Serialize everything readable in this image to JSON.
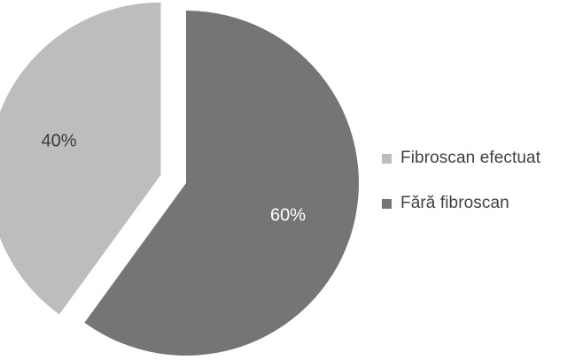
{
  "chart_data": {
    "type": "pie",
    "title": "",
    "slices": [
      {
        "label": "Fibroscan efectuat",
        "value": 40,
        "display": "40%",
        "color": "#bdbdbd",
        "exploded": true,
        "label_color": "#3a3a3a"
      },
      {
        "label": "Fără fibroscan",
        "value": 60,
        "display": "60%",
        "color": "#757575",
        "exploded": false,
        "label_color": "#ffffff"
      }
    ],
    "legend_placement": "right"
  }
}
